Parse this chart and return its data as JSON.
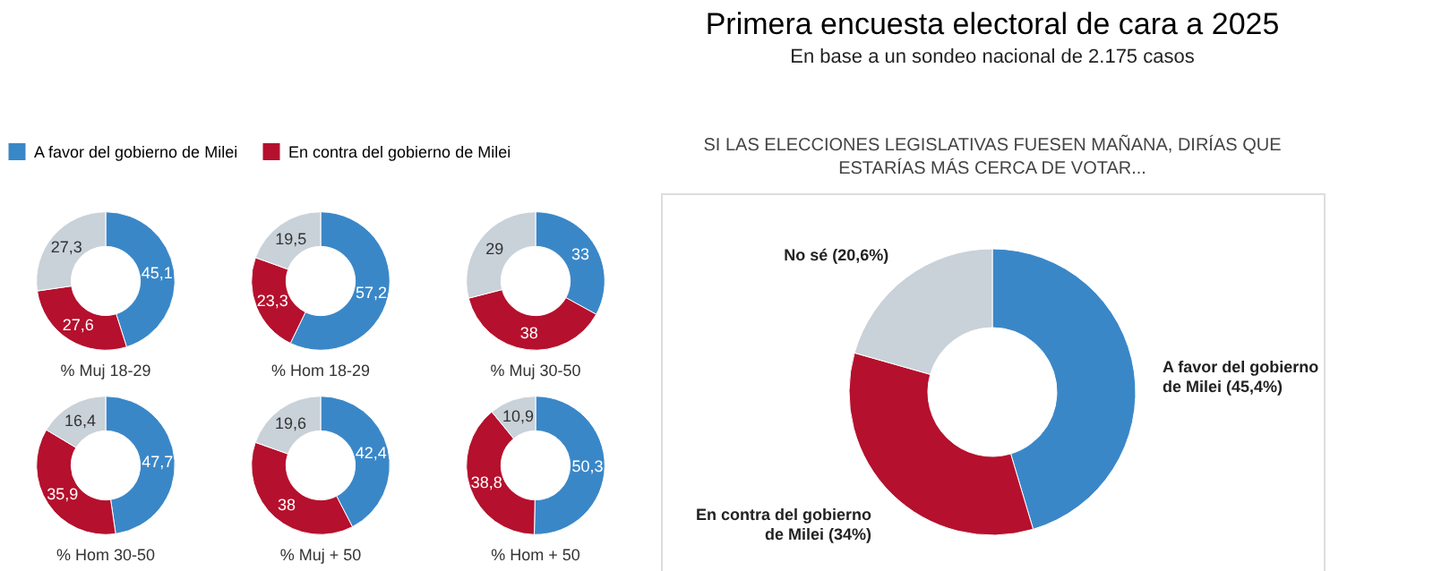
{
  "chart_data": [
    {
      "type": "donut",
      "title": "% Muj 18-29",
      "legend": "top",
      "categories": [
        "A favor del gobierno de Milei",
        "En contra del gobierno de Milei",
        null
      ],
      "values": [
        45.1,
        27.6,
        27.3
      ],
      "value_labels": [
        "45,1",
        "27,6",
        "27,3"
      ],
      "colors": [
        "#3a87c8",
        "#b5102d",
        "#c9d1d9"
      ]
    },
    {
      "type": "donut",
      "title": "% Hom 18-29",
      "values": [
        57.2,
        23.3,
        19.5
      ],
      "value_labels": [
        "57,2",
        "23,3",
        "19,5"
      ],
      "colors": [
        "#3a87c8",
        "#b5102d",
        "#c9d1d9"
      ]
    },
    {
      "type": "donut",
      "title": "% Muj 30-50",
      "values": [
        33,
        38,
        29
      ],
      "value_labels": [
        "33",
        "38",
        "29"
      ],
      "colors": [
        "#3a87c8",
        "#b5102d",
        "#c9d1d9"
      ]
    },
    {
      "type": "donut",
      "title": "% Hom 30-50",
      "values": [
        47.7,
        35.9,
        16.4
      ],
      "value_labels": [
        "47,7",
        "35,9",
        "16,4"
      ],
      "colors": [
        "#3a87c8",
        "#b5102d",
        "#c9d1d9"
      ]
    },
    {
      "type": "donut",
      "title": "% Muj + 50",
      "values": [
        42.4,
        38,
        19.6
      ],
      "value_labels": [
        "42,4",
        "38",
        "19,6"
      ],
      "colors": [
        "#3a87c8",
        "#b5102d",
        "#c9d1d9"
      ]
    },
    {
      "type": "donut",
      "title": "% Hom + 50",
      "values": [
        50.3,
        38.8,
        10.9
      ],
      "value_labels": [
        "50,3",
        "38,8",
        "10,9"
      ],
      "colors": [
        "#3a87c8",
        "#b5102d",
        "#c9d1d9"
      ]
    },
    {
      "type": "donut",
      "title": "Primera encuesta electoral de cara a 2025",
      "subtitle": "En base a un sondeo nacional de 2.175 casos",
      "annotations": [
        "SI LAS ELECCIONES LEGISLATIVAS FUESEN MAÑANA, DIRÍAS QUE ESTARÍAS MÁS CERCA DE VOTAR..."
      ],
      "categories": [
        "A favor del gobierno de Milei",
        "En contra del gobierno de Milei",
        "No sé"
      ],
      "values": [
        45.4,
        34,
        20.6
      ],
      "value_labels": [
        "(45,4%)",
        "(34%)",
        "(20,6%)"
      ],
      "colors": [
        "#3a87c8",
        "#b5102d",
        "#c9d1d9"
      ]
    }
  ]
}
